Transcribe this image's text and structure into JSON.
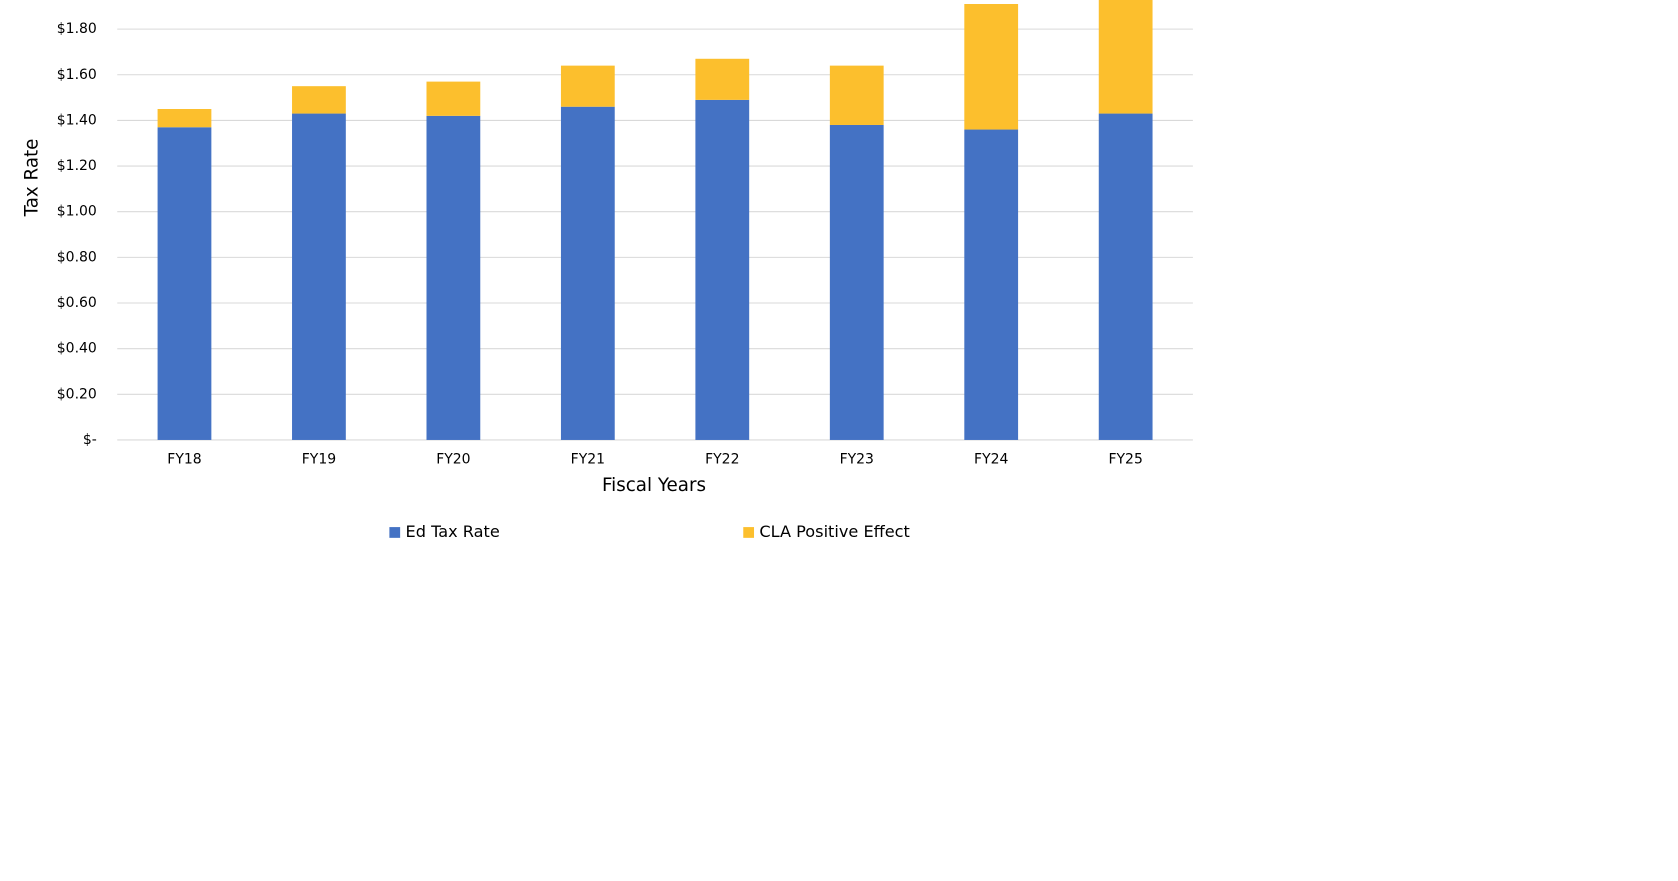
{
  "chart_data": {
    "type": "stacked_bar",
    "x_label": "Fiscal Years",
    "y_label": "Tax Rate",
    "categories": [
      "FY18",
      "FY19",
      "FY20",
      "FY21",
      "FY22",
      "FY23",
      "FY24",
      "FY25"
    ],
    "series": [
      {
        "name": "Ed Tax Rate",
        "color": "#4472c4",
        "values": [
          1.37,
          1.43,
          1.42,
          1.46,
          1.49,
          1.38,
          1.36,
          1.43
        ]
      },
      {
        "name": "CLA Positive Effect",
        "color": "#fcbf2d",
        "values": [
          0.08,
          0.12,
          0.15,
          0.18,
          0.18,
          0.26,
          0.55,
          0.52
        ]
      }
    ],
    "ylim": [
      0,
      2.0
    ],
    "yticks": [
      {
        "value": 0,
        "label": "$-"
      },
      {
        "value": 0.2,
        "label": "$0.20"
      },
      {
        "value": 0.4,
        "label": "$0.40"
      },
      {
        "value": 0.6,
        "label": "$0.60"
      },
      {
        "value": 0.8,
        "label": "$0.80"
      },
      {
        "value": 1.0,
        "label": "$1.00"
      },
      {
        "value": 1.2,
        "label": "$1.20"
      },
      {
        "value": 1.4,
        "label": "$1.40"
      },
      {
        "value": 1.6,
        "label": "$1.60"
      },
      {
        "value": 1.8,
        "label": "$1.80"
      }
    ],
    "grid": true,
    "legend": "bottom"
  }
}
